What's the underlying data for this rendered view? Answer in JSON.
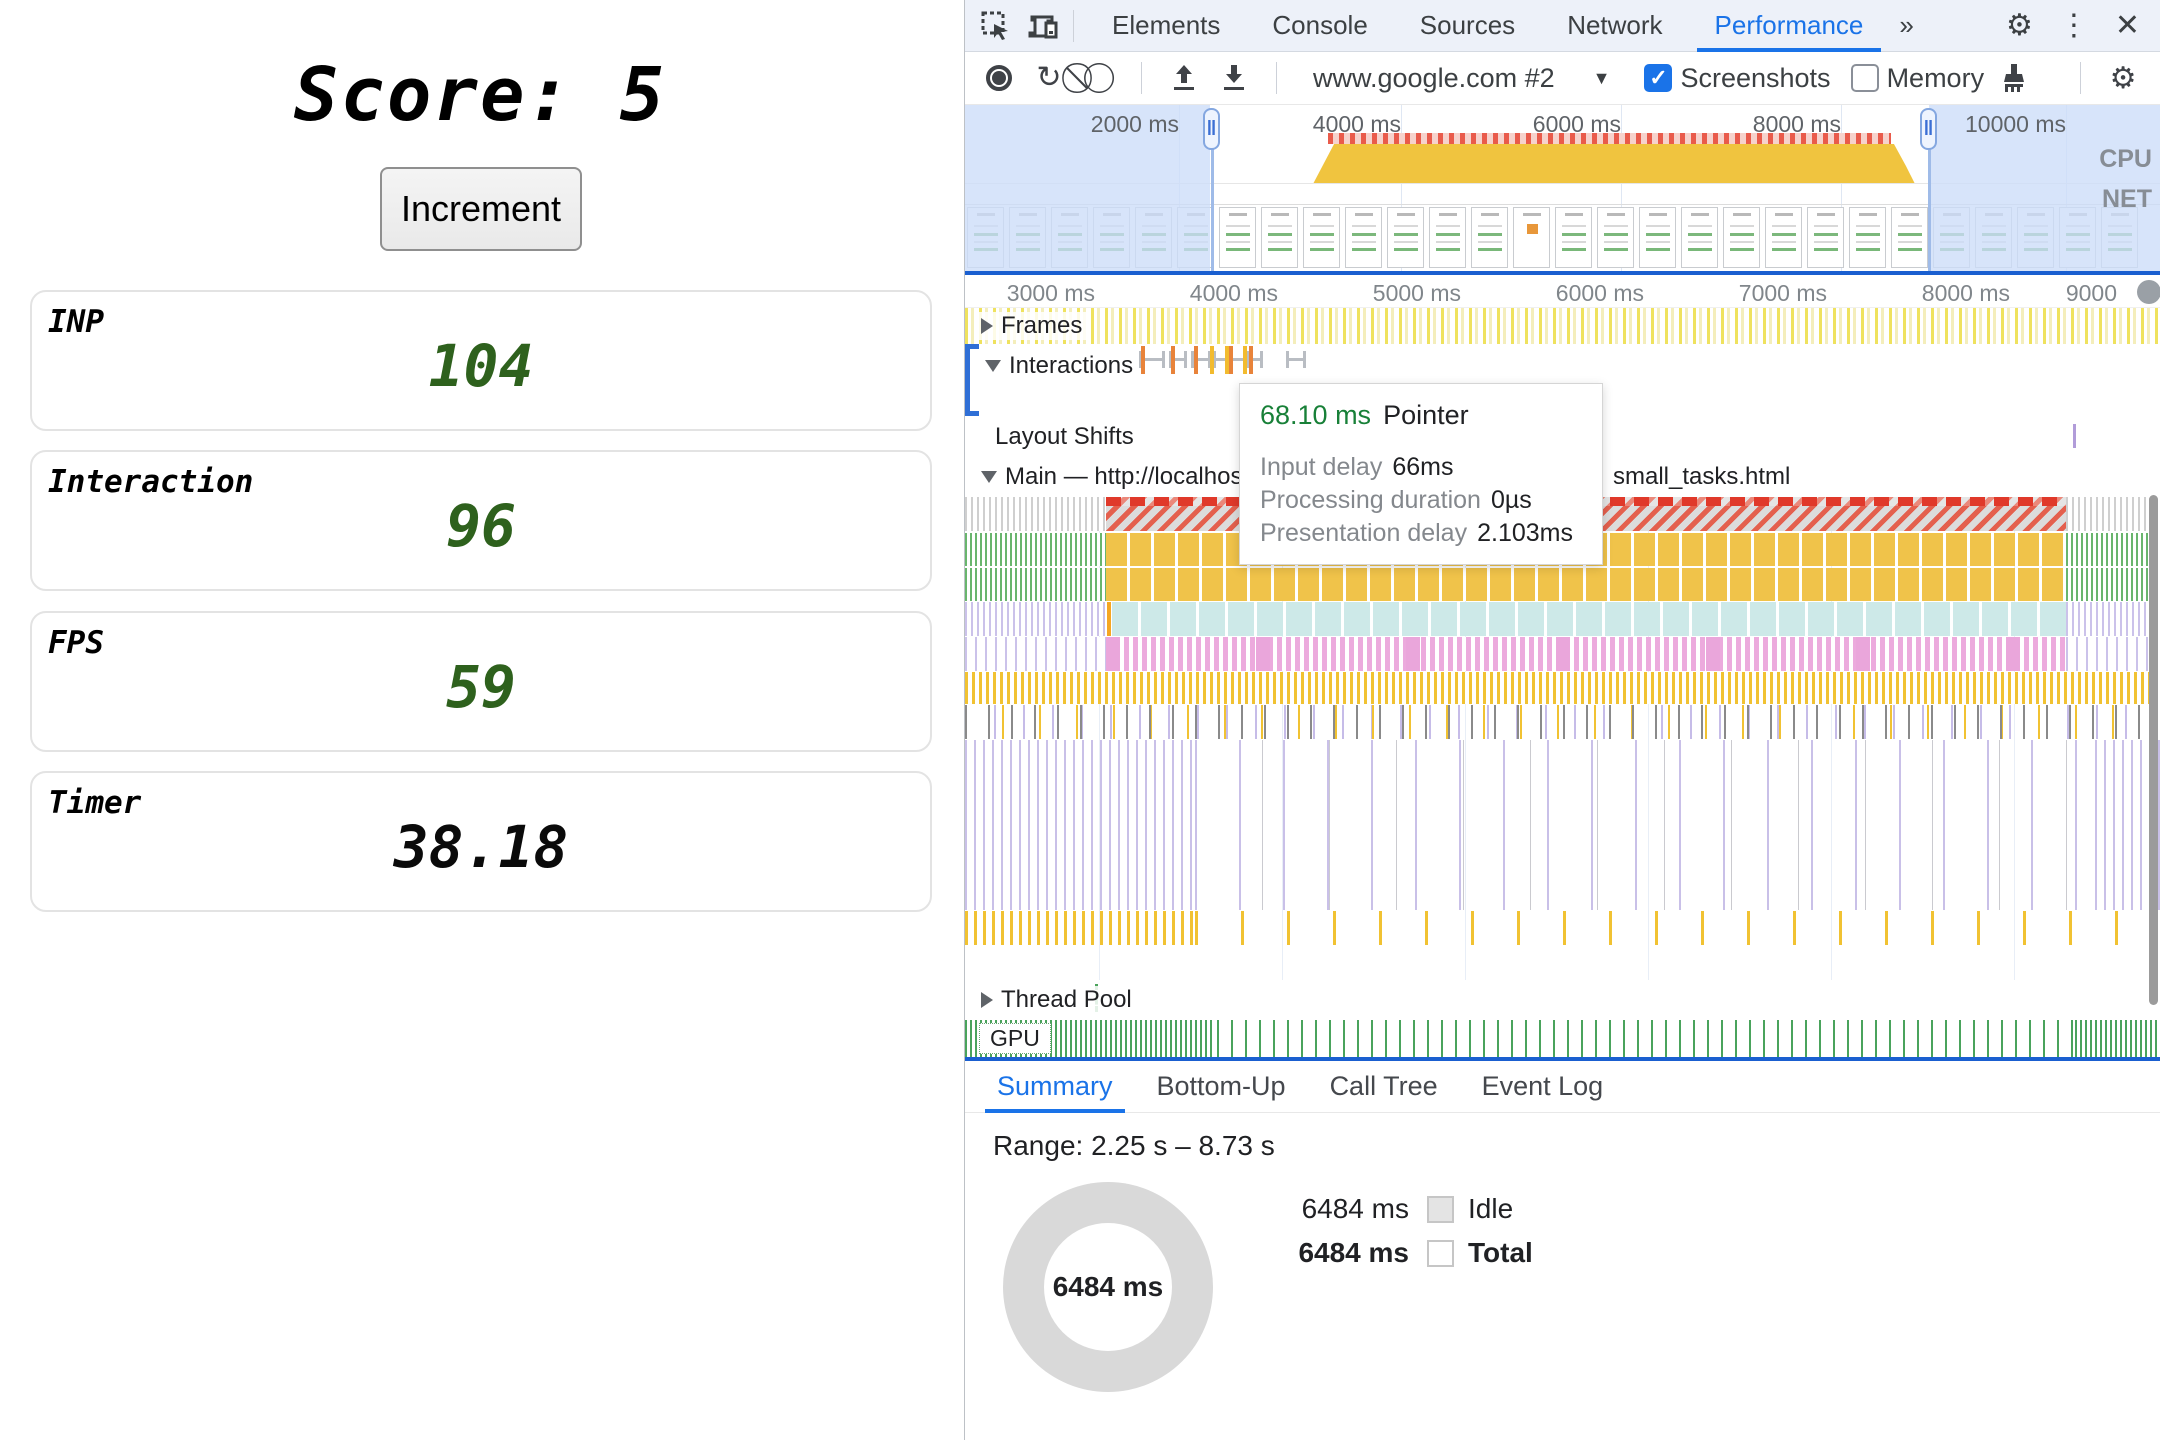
{
  "page": {
    "score_label": "Score: 5",
    "increment_button": "Increment",
    "metrics": [
      {
        "label": "INP",
        "value": "104"
      },
      {
        "label": "Interaction",
        "value": "96"
      },
      {
        "label": "FPS",
        "value": "59"
      },
      {
        "label": "Timer",
        "value": "38.18"
      }
    ]
  },
  "devtools": {
    "tabs": [
      "Elements",
      "Console",
      "Sources",
      "Network",
      "Performance"
    ],
    "active_tab": "Performance",
    "more_tabs_glyph": "»",
    "toolbar": {
      "target_selector": "www.google.com #2",
      "screenshots_label": "Screenshots",
      "memory_label": "Memory",
      "check_glyph": "✓"
    },
    "overview": {
      "time_labels": [
        "2000 ms",
        "4000 ms",
        "6000 ms",
        "8000 ms",
        "10000 ms"
      ],
      "cpu_label": "CPU",
      "net_label": "NET",
      "handle_glyph": "‖"
    },
    "ruler_labels": [
      "3000 ms",
      "4000 ms",
      "5000 ms",
      "6000 ms",
      "7000 ms",
      "8000 ms",
      "9000"
    ],
    "tracks": {
      "frames": "Frames",
      "interactions": "Interactions",
      "layout_shifts": "Layout Shifts",
      "main_prefix": "Main — http://localhost:",
      "main_suffix": "small_tasks.html",
      "thread_pool": "Thread Pool",
      "gpu": "GPU"
    },
    "tooltip": {
      "duration": "68.10 ms",
      "type": "Pointer",
      "rows": [
        {
          "label": "Input delay",
          "value": "66ms"
        },
        {
          "label": "Processing duration",
          "value": "0µs"
        },
        {
          "label": "Presentation delay",
          "value": "2.103ms"
        }
      ]
    },
    "bottom_tabs": [
      "Summary",
      "Bottom-Up",
      "Call Tree",
      "Event Log"
    ],
    "active_bottom_tab": "Summary",
    "summary": {
      "range": "Range: 2.25 s – 8.73 s",
      "donut_center": "6484 ms",
      "legend": [
        {
          "value": "6484 ms",
          "label": "Idle"
        },
        {
          "value": "6484 ms",
          "label": "Total"
        }
      ]
    }
  },
  "colors": {
    "accent_blue": "#1a73e8",
    "cpu_yellow": "#f0c43f",
    "long_task_red": "#e4604e",
    "metric_green": "#2e611d",
    "tooltip_green": "#188038"
  }
}
